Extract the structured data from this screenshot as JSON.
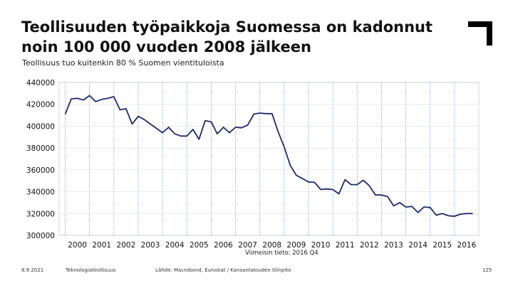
{
  "title_line1": "Teollisuuden työpaikkoja Suomessa on kadonnut",
  "title_line2": "noin 100 000 vuoden 2008 jälkeen",
  "subtitle": "Teollisuus tuo kuitenkin 80 % Suomen vientituloista",
  "footer": {
    "date": "8.9.2021",
    "org": "Teknologiateollisuus",
    "source": "Lähde: Macrobond, Eurostat / Kansantalouden tilinpito",
    "page": "125"
  },
  "colors": {
    "line": "#1f2a6b",
    "grid_x": "#6a9ec9",
    "grid_y": "#d9dde3",
    "text": "#111111",
    "logo": "#000000"
  },
  "logo_icon": "corner-bracket-icon",
  "chart_data": {
    "type": "line",
    "title": "",
    "xlabel": "",
    "ylabel": "",
    "note": "Viimeisin tieto: 2016 Q4",
    "ylim": [
      300000,
      440000
    ],
    "yticks": [
      300000,
      320000,
      340000,
      360000,
      380000,
      400000,
      420000,
      440000
    ],
    "ytick_labels": [
      "300000",
      "320000",
      "340000",
      "360000",
      "380000",
      "400000",
      "420000",
      "440000"
    ],
    "xlim": [
      1999.75,
      2017.0
    ],
    "xticks": [
      2000,
      2001,
      2002,
      2003,
      2004,
      2005,
      2006,
      2007,
      2008,
      2009,
      2010,
      2011,
      2012,
      2013,
      2014,
      2015,
      2016
    ],
    "xtick_labels": [
      "2000",
      "2001",
      "2002",
      "2003",
      "2004",
      "2005",
      "2006",
      "2007",
      "2008",
      "2009",
      "2010",
      "2011",
      "2012",
      "2013",
      "2014",
      "2015",
      "2016"
    ],
    "grid": {
      "x": true,
      "y": true
    },
    "x": [
      2000.0,
      2000.25,
      2000.5,
      2000.75,
      2001.0,
      2001.25,
      2001.5,
      2001.75,
      2002.0,
      2002.25,
      2002.5,
      2002.75,
      2003.0,
      2003.25,
      2003.5,
      2003.75,
      2004.0,
      2004.25,
      2004.5,
      2004.75,
      2005.0,
      2005.25,
      2005.5,
      2005.75,
      2006.0,
      2006.25,
      2006.5,
      2006.75,
      2007.0,
      2007.25,
      2007.5,
      2007.75,
      2008.0,
      2008.25,
      2008.5,
      2008.75,
      2009.0,
      2009.25,
      2009.5,
      2009.75,
      2010.0,
      2010.25,
      2010.5,
      2010.75,
      2011.0,
      2011.25,
      2011.5,
      2011.75,
      2012.0,
      2012.25,
      2012.5,
      2012.75,
      2013.0,
      2013.25,
      2013.5,
      2013.75,
      2014.0,
      2014.25,
      2014.5,
      2014.75,
      2015.0,
      2015.25,
      2015.5,
      2015.75,
      2016.0,
      2016.25,
      2016.5,
      2016.75
    ],
    "series": [
      {
        "values": [
          411000,
          425000,
          425500,
          424000,
          428000,
          422500,
          424500,
          425500,
          427000,
          415000,
          416000,
          402000,
          409000,
          406000,
          402000,
          398000,
          394000,
          399000,
          393000,
          391000,
          391000,
          397000,
          388000,
          405000,
          404000,
          393000,
          399000,
          394000,
          399000,
          398500,
          401000,
          411000,
          412000,
          411500,
          411500,
          395000,
          381000,
          364000,
          355000,
          352000,
          349000,
          348500,
          342000,
          342500,
          342000,
          338000,
          351000,
          346500,
          346500,
          350500,
          345500,
          337000,
          337000,
          335500,
          327000,
          330000,
          326000,
          326500,
          321000,
          326000,
          325500,
          318500,
          320000,
          318000,
          317500,
          319500,
          320000,
          320000
        ]
      }
    ]
  }
}
